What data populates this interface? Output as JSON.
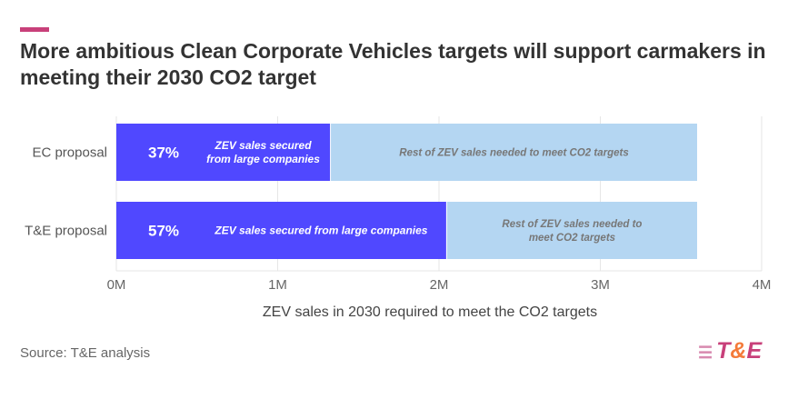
{
  "title": "More ambitious Clean Corporate Vehicles targets will support carmakers in meeting their 2030 CO2 target",
  "source": "Source: T&E analysis",
  "logo": {
    "text": "T&E"
  },
  "colors": {
    "secured": "#5048ff",
    "rest": "#b4d6f2",
    "accent": "#c8407a"
  },
  "chart_data": {
    "type": "bar",
    "orientation": "horizontal",
    "stacked": true,
    "categories": [
      "EC proposal",
      "T&E proposal"
    ],
    "series": [
      {
        "name": "ZEV sales secured from large companies",
        "values": [
          1.33,
          2.05
        ],
        "percent_labels": [
          "37%",
          "57%"
        ],
        "labels": [
          "ZEV sales secured\nfrom large companies",
          "ZEV sales secured from large companies"
        ]
      },
      {
        "name": "Rest of ZEV sales needed to meet CO2 targets",
        "values": [
          2.27,
          1.55
        ],
        "labels": [
          "Rest of ZEV sales needed to meet CO2 targets",
          "Rest of ZEV sales needed to\nmeet CO2 targets"
        ]
      }
    ],
    "xlabel": "ZEV sales in 2030 required to meet the CO2 targets",
    "xlim": [
      0,
      4
    ],
    "xticks": [
      0,
      1,
      2,
      3,
      4
    ],
    "xtick_labels": [
      "0M",
      "1M",
      "2M",
      "3M",
      "4M"
    ],
    "grid": true
  }
}
